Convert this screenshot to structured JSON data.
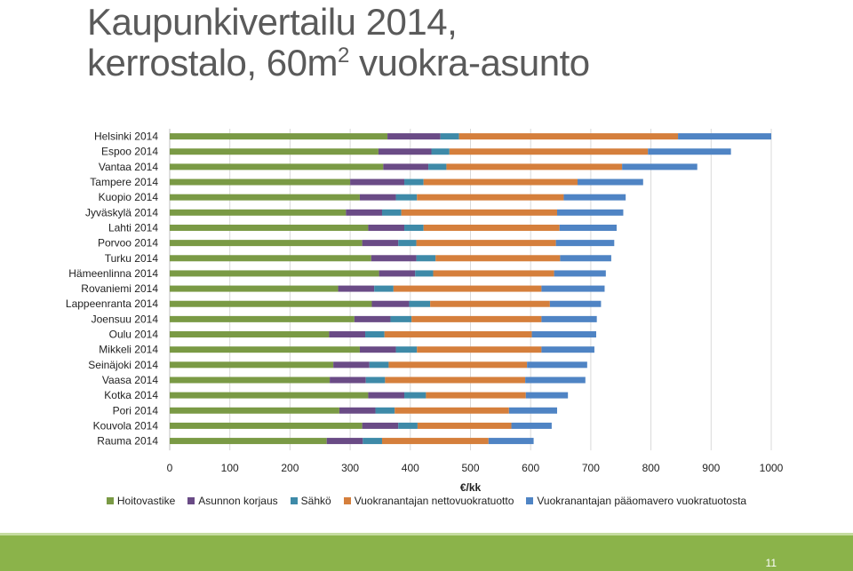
{
  "slide": {
    "title_line1": "Kaupunkivertailu 2014,",
    "title_line2_pre": "kerrostalo, 60m",
    "title_line2_sup": "2",
    "title_line2_post": " vuokra-asunto",
    "page_number": "11"
  },
  "chart_data": {
    "type": "bar",
    "orientation": "horizontal",
    "stacked": true,
    "categories": [
      "Helsinki 2014",
      "Espoo 2014",
      "Vantaa 2014",
      "Tampere 2014",
      "Kuopio 2014",
      "Jyväskylä 2014",
      "Lahti 2014",
      "Porvoo 2014",
      "Turku 2014",
      "Hämeenlinna 2014",
      "Rovaniemi 2014",
      "Lappeenranta 2014",
      "Joensuu 2014",
      "Oulu 2014",
      "Mikkeli 2014",
      "Seinäjoki 2014",
      "Vaasa 2014",
      "Kotka 2014",
      "Pori 2014",
      "Kouvola 2014",
      "Rauma 2014"
    ],
    "series": [
      {
        "name": "Hoitovastike",
        "color": "#7a9a45",
        "values": [
          362,
          347,
          355,
          300,
          316,
          293,
          330,
          320,
          335,
          348,
          280,
          336,
          307,
          265,
          316,
          272,
          266,
          330,
          282,
          320,
          261
        ]
      },
      {
        "name": "Asunnon korjaus",
        "color": "#6a4b86",
        "values": [
          88,
          88,
          75,
          90,
          60,
          60,
          60,
          60,
          75,
          60,
          60,
          62,
          60,
          60,
          60,
          60,
          60,
          60,
          60,
          60,
          60
        ]
      },
      {
        "name": "Sähkö",
        "color": "#3e8aa8",
        "values": [
          31,
          30,
          30,
          32,
          35,
          32,
          32,
          30,
          32,
          30,
          32,
          35,
          35,
          32,
          35,
          32,
          32,
          36,
          32,
          32,
          32
        ]
      },
      {
        "name": "Vuokranantajan nettovuokratuotto",
        "color": "#d57f3c",
        "values": [
          364,
          330,
          292,
          256,
          244,
          259,
          226,
          232,
          207,
          201,
          246,
          199,
          216,
          245,
          207,
          230,
          233,
          166,
          190,
          156,
          177
        ]
      },
      {
        "name": "Vuokranantajan pääomavero vuokratuotosta",
        "color": "#4f84c4",
        "values": [
          155,
          138,
          125,
          109,
          103,
          110,
          95,
          97,
          85,
          86,
          105,
          85,
          92,
          107,
          88,
          100,
          100,
          70,
          80,
          67,
          75
        ]
      }
    ],
    "xlabel": "€/kk",
    "xlim": [
      0,
      1000
    ],
    "xticks": [
      "0",
      "100",
      "200",
      "300",
      "400",
      "500",
      "600",
      "700",
      "800",
      "900",
      "1000"
    ],
    "grid": "vertical",
    "legend": "bottom"
  }
}
